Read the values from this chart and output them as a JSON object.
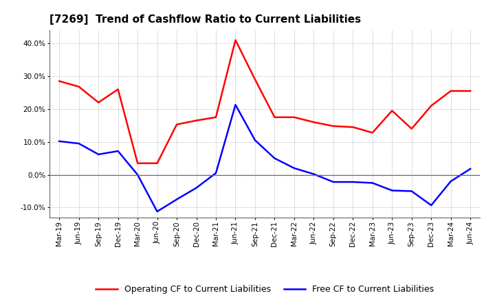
{
  "title": "[7269]  Trend of Cashflow Ratio to Current Liabilities",
  "x_labels": [
    "Mar-19",
    "Jun-19",
    "Sep-19",
    "Dec-19",
    "Mar-20",
    "Jun-20",
    "Sep-20",
    "Dec-20",
    "Mar-21",
    "Jun-21",
    "Sep-21",
    "Dec-21",
    "Mar-22",
    "Jun-22",
    "Sep-22",
    "Dec-22",
    "Mar-23",
    "Jun-23",
    "Sep-23",
    "Dec-23",
    "Mar-24",
    "Jun-24"
  ],
  "operating_cf": [
    0.285,
    0.268,
    0.22,
    0.26,
    0.035,
    0.035,
    0.153,
    0.165,
    0.175,
    0.41,
    0.29,
    0.175,
    0.175,
    0.16,
    0.148,
    0.145,
    0.128,
    0.195,
    0.14,
    0.21,
    0.255,
    0.255
  ],
  "free_cf": [
    0.102,
    0.095,
    0.062,
    0.072,
    0.0,
    -0.112,
    -0.075,
    -0.04,
    0.005,
    0.213,
    0.105,
    0.05,
    0.02,
    0.002,
    -0.022,
    -0.022,
    -0.025,
    -0.048,
    -0.05,
    -0.093,
    -0.02,
    0.018
  ],
  "operating_color": "#ff0000",
  "free_color": "#0000ff",
  "ylim": [
    -0.13,
    0.44
  ],
  "yticks": [
    -0.1,
    0.0,
    0.1,
    0.2,
    0.3,
    0.4
  ],
  "grid_color": "#999999",
  "background_color": "#ffffff",
  "legend_op": "Operating CF to Current Liabilities",
  "legend_free": "Free CF to Current Liabilities"
}
